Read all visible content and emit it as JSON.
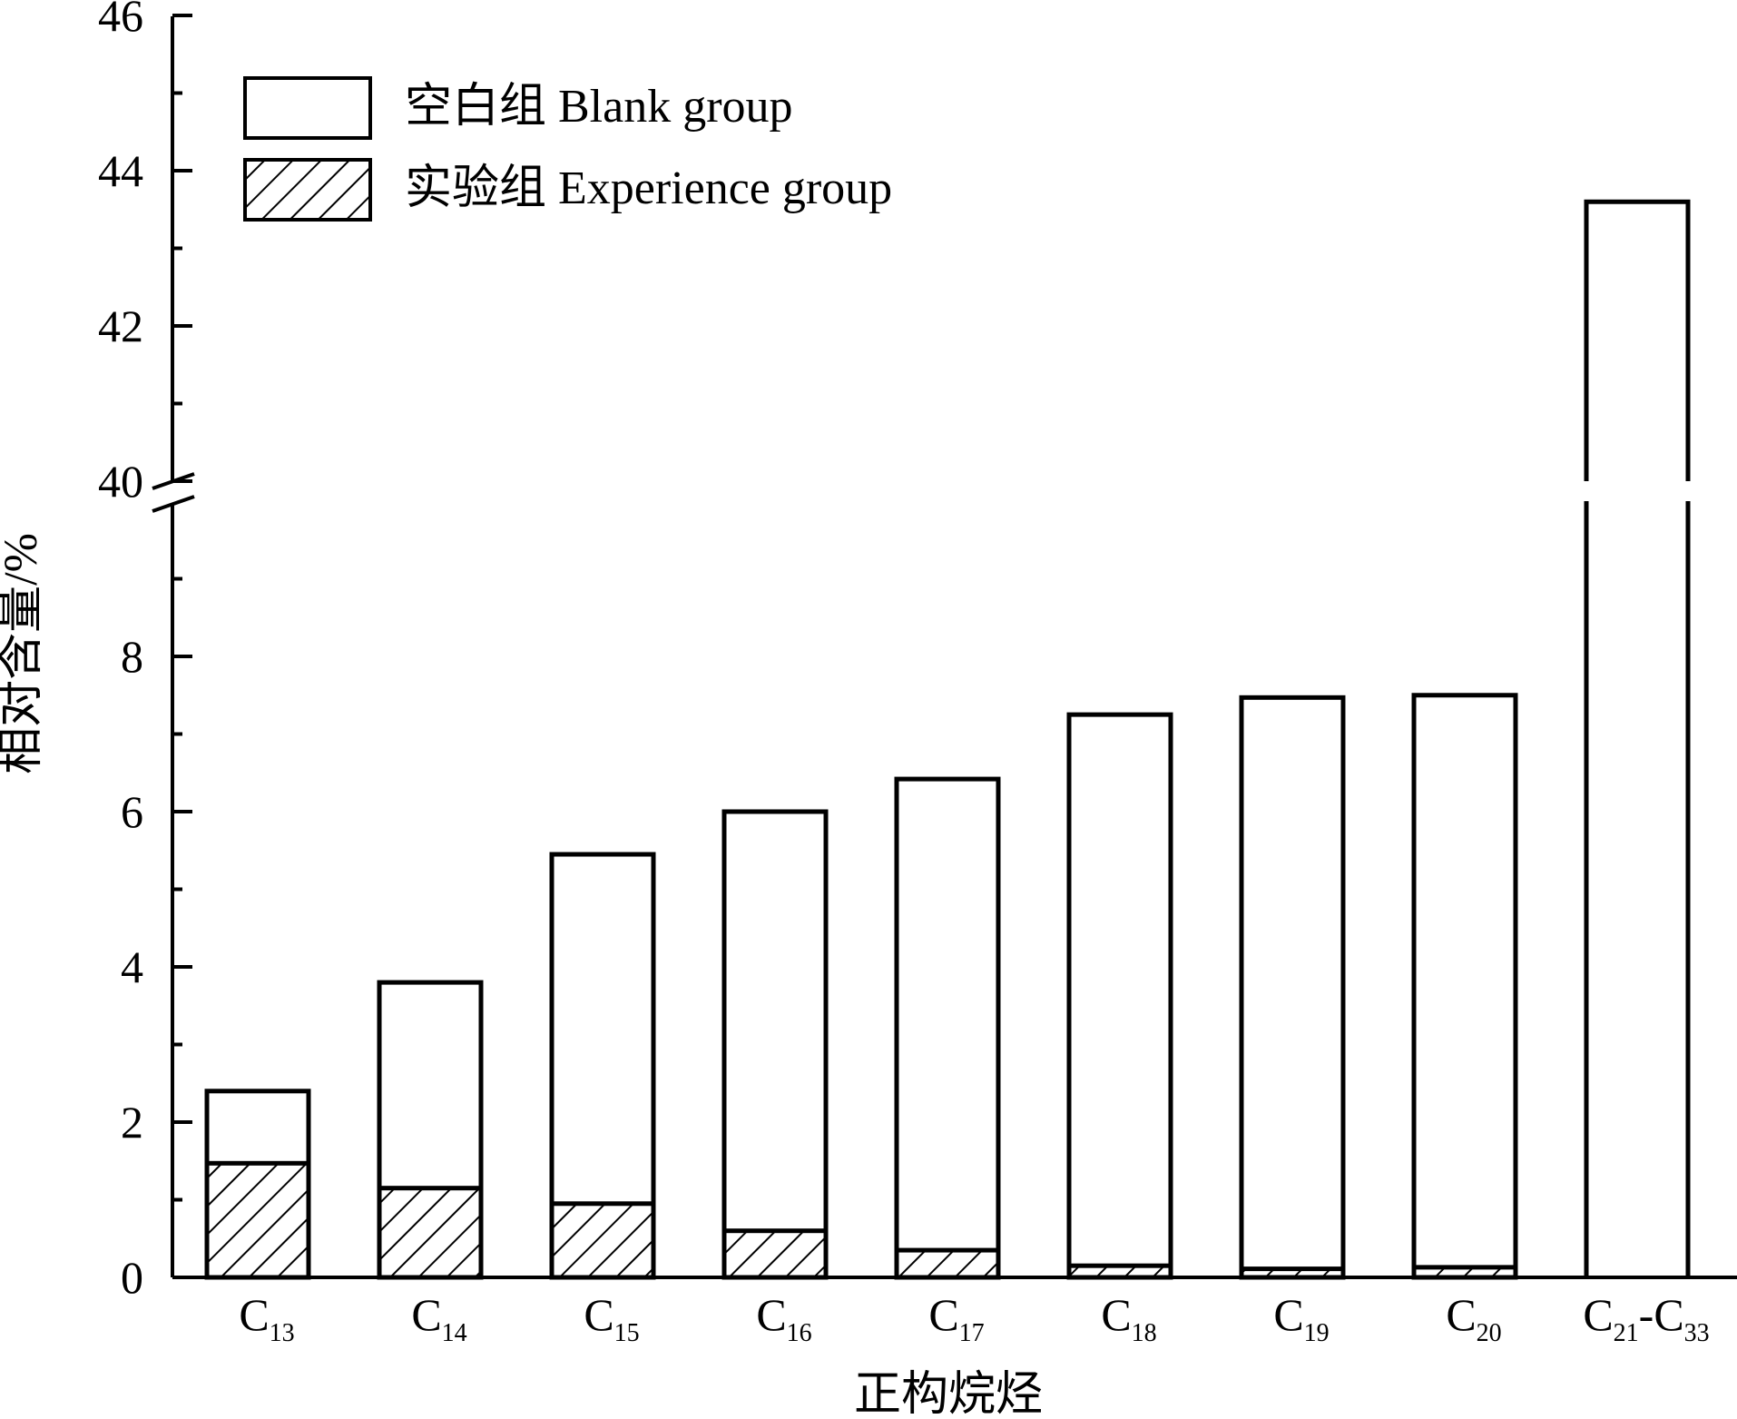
{
  "chart_data": {
    "type": "bar",
    "stacked": "overlay",
    "xlabel": "正构烷烃",
    "ylabel": "相对含量/%",
    "categories": [
      {
        "main": "C",
        "sub": "13"
      },
      {
        "main": "C",
        "sub": "14"
      },
      {
        "main": "C",
        "sub": "15"
      },
      {
        "main": "C",
        "sub": "16"
      },
      {
        "main": "C",
        "sub": "17"
      },
      {
        "main": "C",
        "sub": "18"
      },
      {
        "main": "C",
        "sub": "19"
      },
      {
        "main": "C",
        "sub": "20"
      },
      {
        "main": "C",
        "sub": "21",
        "dash": "-",
        "main2": "C",
        "sub2": "33"
      }
    ],
    "series": [
      {
        "name": "空白组 Blank group",
        "fill": "none",
        "values": [
          2.4,
          3.8,
          5.45,
          6.0,
          6.42,
          7.25,
          7.47,
          7.5,
          43.6
        ]
      },
      {
        "name": "实验组 Experience group",
        "fill": "hatch",
        "values": [
          1.47,
          1.15,
          0.95,
          0.6,
          0.35,
          0.15,
          0.11,
          0.13,
          0
        ]
      }
    ],
    "y_axis": {
      "broken": true,
      "lower_range": [
        0,
        10
      ],
      "upper_range": [
        40,
        46
      ],
      "lower_ticks": [
        0,
        2,
        4,
        6,
        8
      ],
      "upper_ticks": [
        40,
        42,
        44,
        46
      ],
      "tick_labels": [
        "0",
        "2",
        "4",
        "6",
        "8",
        "40",
        "42",
        "44",
        "46"
      ]
    },
    "grid": false,
    "legend_position": "top-left",
    "colors": {
      "stroke": "#000000",
      "background": "#ffffff"
    }
  }
}
